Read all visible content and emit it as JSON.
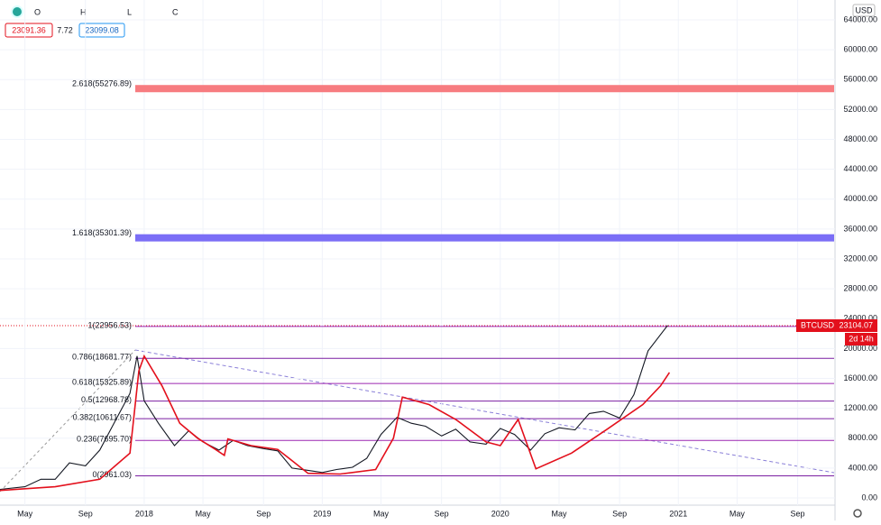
{
  "chart_data": {
    "type": "line",
    "ohlc_labels": [
      "O",
      "H",
      "L",
      "C"
    ],
    "header_values": [
      "23091.36",
      "7.72",
      "23099.08"
    ],
    "currency": "USD",
    "price_tag": {
      "symbol": "BTCUSD",
      "price": "23104.07",
      "countdown": "2d 14h"
    },
    "xlim": [
      2017.19,
      2021.88
    ],
    "xticks": [
      {
        "value": 2017.33,
        "label": "May"
      },
      {
        "value": 2017.67,
        "label": "Sep"
      },
      2018,
      {
        "value": 2018.33,
        "label": "May"
      },
      {
        "value": 2018.67,
        "label": "Sep"
      },
      2019,
      {
        "value": 2019.33,
        "label": "May"
      },
      {
        "value": 2019.67,
        "label": "Sep"
      },
      2020,
      {
        "value": 2020.33,
        "label": "May"
      },
      {
        "value": 2020.67,
        "label": "Sep"
      },
      2021,
      {
        "value": 2021.33,
        "label": "May"
      },
      {
        "value": 2021.67,
        "label": "Sep"
      }
    ],
    "ylim": [
      0,
      64000
    ],
    "yticks": [
      {
        "value": 0,
        "label": "0.00"
      },
      {
        "value": 4000,
        "label": "4000.00"
      },
      {
        "value": 8000,
        "label": "8000.00"
      },
      {
        "value": 12000,
        "label": "12000.00"
      },
      {
        "value": 16000,
        "label": "16000.00"
      },
      {
        "value": 20000,
        "label": "20000.00"
      },
      {
        "value": 24000,
        "label": "24000.00"
      },
      {
        "value": 28000,
        "label": "28000.00"
      },
      {
        "value": 32000,
        "label": "32000.00"
      },
      {
        "value": 36000,
        "label": "36000.00"
      },
      {
        "value": 40000,
        "label": "40000.00"
      },
      {
        "value": 44000,
        "label": "44000.00"
      },
      {
        "value": 48000,
        "label": "48000.00"
      },
      {
        "value": 52000,
        "label": "52000.00"
      },
      {
        "value": 56000,
        "label": "56000.00"
      },
      {
        "value": 60000,
        "label": "60000.00"
      },
      {
        "value": 64000,
        "label": "64000.00"
      }
    ],
    "grid": true,
    "series": [
      {
        "color": "#131722",
        "x": [
          2017.19,
          2017.33,
          2017.42,
          2017.5,
          2017.58,
          2017.67,
          2017.75,
          2017.83,
          2017.92,
          2017.96,
          2018.0,
          2018.08,
          2018.17,
          2018.25,
          2018.33,
          2018.42,
          2018.5,
          2018.58,
          2018.67,
          2018.75,
          2018.83,
          2018.92,
          2019.0,
          2019.08,
          2019.17,
          2019.25,
          2019.33,
          2019.42,
          2019.5,
          2019.58,
          2019.67,
          2019.75,
          2019.83,
          2019.92,
          2020.0,
          2020.08,
          2020.17,
          2020.25,
          2020.33,
          2020.42,
          2020.5,
          2020.58,
          2020.67,
          2020.75,
          2020.83,
          2020.94
        ],
        "values": [
          1150,
          1500,
          2500,
          2500,
          4700,
          4300,
          6400,
          10000,
          14000,
          19000,
          13000,
          10000,
          7000,
          9000,
          7500,
          6400,
          7700,
          7000,
          6600,
          6300,
          4000,
          3700,
          3400,
          3800,
          4100,
          5300,
          8500,
          10800,
          10000,
          9600,
          8300,
          9200,
          7500,
          7200,
          9300,
          8500,
          6400,
          8600,
          9400,
          9100,
          11300,
          11600,
          10700,
          13800,
          19700,
          23104
        ]
      },
      {
        "color": "#e3101c",
        "x": [
          2017.19,
          2017.5,
          2017.75,
          2017.92,
          2017.97,
          2018.0,
          2018.1,
          2018.2,
          2018.3,
          2018.4,
          2018.45,
          2018.47,
          2018.6,
          2018.75,
          2018.83,
          2018.92,
          2019.1,
          2019.3,
          2019.4,
          2019.45,
          2019.6,
          2019.75,
          2019.92,
          2020.0,
          2020.1,
          2020.2,
          2020.4,
          2020.6,
          2020.8,
          2020.9,
          2020.95
        ],
        "values": [
          1000,
          1500,
          2500,
          6000,
          17000,
          19000,
          15000,
          10000,
          8000,
          6500,
          5700,
          7900,
          7000,
          6500,
          5000,
          3300,
          3200,
          3800,
          8000,
          13500,
          12500,
          10500,
          7500,
          7000,
          10500,
          3900,
          6000,
          9200,
          12500,
          15000,
          16800
        ]
      }
    ],
    "fib_levels": [
      {
        "label": "2.618(55276.89)",
        "value": 55276.89,
        "band": true,
        "color": "#f77c80"
      },
      {
        "label": "1.618(35301.39)",
        "value": 35301.39,
        "band": true,
        "color": "#7b6ef6"
      },
      {
        "label": "1(22956.53)",
        "value": 22956.53,
        "band": false,
        "color": "#9c27b0"
      },
      {
        "label": "0.786(18681.77)",
        "value": 18681.77,
        "band": false,
        "color": "#7b1fa2"
      },
      {
        "label": "0.618(15325.89)",
        "value": 15325.89,
        "band": false,
        "color": "#9c27b0"
      },
      {
        "label": "0.5(12968.78)",
        "value": 12968.78,
        "band": false,
        "color": "#7b1fa2"
      },
      {
        "label": "0.382(10611.67)",
        "value": 10611.67,
        "band": false,
        "color": "#7b1fa2"
      },
      {
        "label": "0.236(7695.70)",
        "value": 7695.7,
        "band": false,
        "color": "#9c27b0"
      },
      {
        "label": "0(2961.03)",
        "value": 2961.03,
        "band": false,
        "color": "#7b1fa2"
      }
    ]
  }
}
